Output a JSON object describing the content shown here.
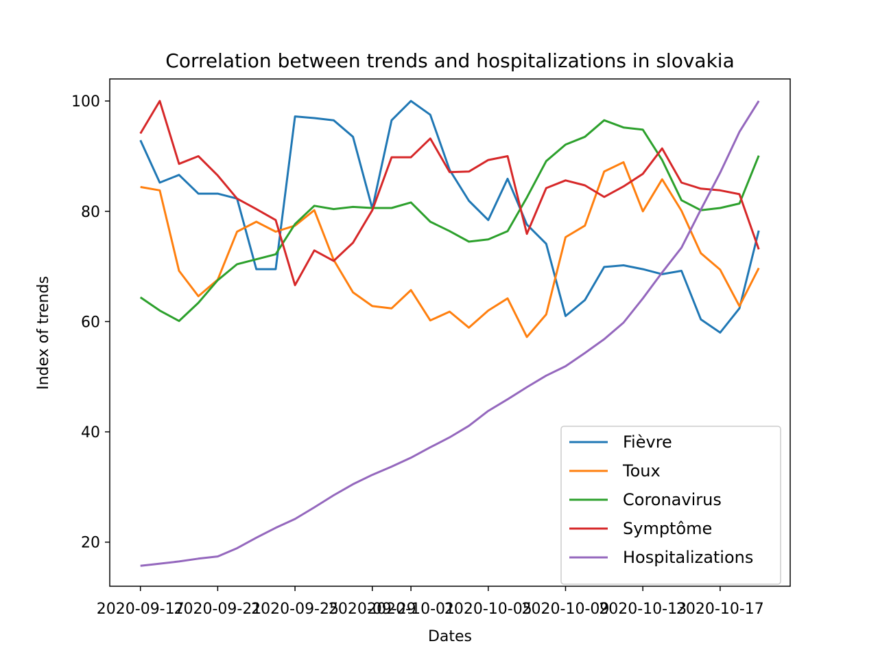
{
  "chart_data": {
    "type": "line",
    "title": "Correlation between trends and hospitalizations in slovakia",
    "xlabel": "Dates",
    "ylabel": "Index of trends",
    "x": [
      "2020-09-17",
      "2020-09-18",
      "2020-09-19",
      "2020-09-20",
      "2020-09-21",
      "2020-09-22",
      "2020-09-23",
      "2020-09-24",
      "2020-09-25",
      "2020-09-26",
      "2020-09-27",
      "2020-09-28",
      "2020-09-29",
      "2020-09-30",
      "2020-10-01",
      "2020-10-02",
      "2020-10-03",
      "2020-10-04",
      "2020-10-05",
      "2020-10-06",
      "2020-10-07",
      "2020-10-08",
      "2020-10-09",
      "2020-10-10",
      "2020-10-11",
      "2020-10-12",
      "2020-10-13",
      "2020-10-14",
      "2020-10-15",
      "2020-10-16",
      "2020-10-17",
      "2020-10-18",
      "2020-10-19"
    ],
    "xticks": [
      "2020-09-17",
      "2020-09-21",
      "2020-09-25",
      "2020-09-29",
      "2020-10-01",
      "2020-10-05",
      "2020-10-09",
      "2020-10-13",
      "2020-10-17"
    ],
    "ylim": [
      12,
      104
    ],
    "yticks": [
      20,
      40,
      60,
      80,
      100
    ],
    "grid": false,
    "legend_position": "lower-right",
    "series": [
      {
        "name": "Fièvre",
        "color": "#1f77b4",
        "values": [
          92.9,
          85.2,
          86.6,
          83.2,
          83.2,
          82.3,
          69.5,
          69.5,
          97.2,
          96.9,
          96.5,
          93.5,
          80.5,
          96.5,
          100,
          97.5,
          87.5,
          81.9,
          78.4,
          85.9,
          77.6,
          74.1,
          61,
          63.9,
          69.9,
          70.2,
          69.5,
          68.6,
          69.2,
          60.4,
          58,
          62.4,
          76.5
        ]
      },
      {
        "name": "Toux",
        "color": "#ff7f0e",
        "values": [
          84.4,
          83.8,
          69.2,
          64.6,
          67.6,
          76.3,
          78.1,
          76.3,
          77.4,
          80.2,
          71.2,
          65.3,
          62.8,
          62.4,
          65.7,
          60.2,
          61.8,
          58.9,
          62,
          64.2,
          57.2,
          61.3,
          75.3,
          77.4,
          87.2,
          88.9,
          80,
          85.8,
          80.1,
          72.4,
          69.4,
          62.8,
          69.7
        ]
      },
      {
        "name": "Coronavirus",
        "color": "#2ca02c",
        "values": [
          64.4,
          62,
          60.1,
          63.4,
          67.5,
          70.4,
          71.3,
          72.2,
          77.7,
          81,
          80.4,
          80.8,
          80.6,
          80.6,
          81.6,
          78.1,
          76.4,
          74.5,
          74.9,
          76.4,
          82.5,
          89.1,
          92.1,
          93.5,
          96.5,
          95.2,
          94.8,
          89.3,
          82,
          80.2,
          80.6,
          81.4,
          90.1
        ]
      },
      {
        "name": "Symptôme",
        "color": "#d62728",
        "values": [
          94.1,
          100,
          88.6,
          90,
          86.5,
          82.3,
          80.4,
          78.4,
          66.6,
          72.9,
          71,
          74.3,
          80.2,
          89.8,
          89.8,
          93.2,
          87.1,
          87.2,
          89.3,
          90,
          75.9,
          84.2,
          85.6,
          84.7,
          82.6,
          84.5,
          86.8,
          91.4,
          85.2,
          84.1,
          83.8,
          83.1,
          73.1
        ]
      },
      {
        "name": "Hospitalizations",
        "color": "#9467bd",
        "values": [
          15.7,
          16.1,
          16.5,
          17,
          17.4,
          18.9,
          20.8,
          22.6,
          24.2,
          26.3,
          28.5,
          30.5,
          32.2,
          33.7,
          35.3,
          37.2,
          39,
          41.1,
          43.8,
          45.9,
          48.1,
          50.2,
          51.9,
          54.3,
          56.8,
          59.8,
          64.2,
          68.9,
          73.4,
          80.3,
          87,
          94.4,
          100
        ]
      }
    ]
  }
}
